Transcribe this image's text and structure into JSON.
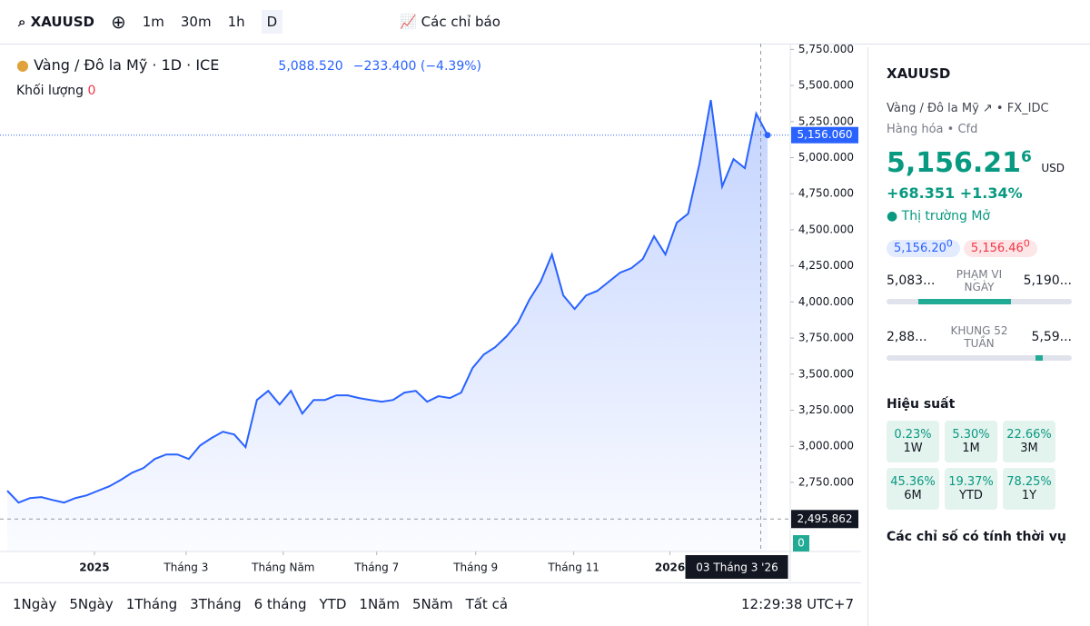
{
  "toolbar": {
    "symbol": "XAUUSD",
    "intervals": [
      "1m",
      "30m",
      "1h",
      "D"
    ],
    "indicators": "Các chỉ báo"
  },
  "legend": {
    "name": "Vàng / Đô la Mỹ · 1D · ICE",
    "price": "5,088.520",
    "change": "−233.400 (−4.39%)",
    "volume_label": "Khối lượng",
    "volume_value": "0"
  },
  "chart_data": {
    "type": "line",
    "color": "#2962ff",
    "values": [
      2692,
      2610,
      2641,
      2648,
      2628,
      2610,
      2641,
      2660,
      2692,
      2723,
      2767,
      2817,
      2849,
      2912,
      2943,
      2943,
      2912,
      3006,
      3057,
      3101,
      3082,
      2994,
      3321,
      3384,
      3290,
      3384,
      3227,
      3321,
      3321,
      3353,
      3353,
      3334,
      3321,
      3309,
      3321,
      3372,
      3384,
      3309,
      3347,
      3334,
      3372,
      3542,
      3636,
      3687,
      3762,
      3856,
      4014,
      4140,
      4329,
      4045,
      3951,
      4045,
      4077,
      4140,
      4203,
      4234,
      4297,
      4455,
      4329,
      4549,
      4612,
      4958,
      5399,
      4800,
      4990,
      4927,
      5305,
      5156
    ],
    "xlim": [
      0,
      69
    ],
    "xticks": [
      {
        "value": 7.68,
        "label": "2025"
      },
      {
        "value": 15.76,
        "label": "Tháng 3"
      },
      {
        "value": 24.32,
        "label": "Tháng Năm"
      },
      {
        "value": 32.56,
        "label": "Tháng 7"
      },
      {
        "value": 41.28,
        "label": "Tháng 9"
      },
      {
        "value": 49.92,
        "label": "Tháng 11"
      },
      {
        "value": 58.4,
        "label": "2026"
      }
    ],
    "ylim": [
      2271,
      5790
    ],
    "yticks": [
      {
        "value": 2750,
        "label": "2,750.000"
      },
      {
        "value": 3000,
        "label": "3,000.000"
      },
      {
        "value": 3250,
        "label": "3,250.000"
      },
      {
        "value": 3500,
        "label": "3,500.000"
      },
      {
        "value": 3750,
        "label": "3,750.000"
      },
      {
        "value": 4000,
        "label": "4,000.000"
      },
      {
        "value": 4250,
        "label": "4,250.000"
      },
      {
        "value": 4500,
        "label": "4,500.000"
      },
      {
        "value": 4750,
        "label": "4,750.000"
      },
      {
        "value": 5000,
        "label": "5,000.000"
      },
      {
        "value": 5250,
        "label": "5,250.000"
      },
      {
        "value": 5500,
        "label": "5,500.000"
      },
      {
        "value": 5750,
        "label": "5,750.000"
      }
    ],
    "last_price": {
      "value": 5156.06,
      "label": "5,156.060"
    },
    "crosshair": {
      "x": 66.4,
      "y": {
        "value": 2495.862,
        "label": "2,495.862"
      },
      "date": "03 Tháng 3 '26",
      "volume": "0"
    }
  },
  "range_bar": {
    "ranges": [
      "1Ngày",
      "5Ngày",
      "1Tháng",
      "3Tháng",
      "6 tháng",
      "YTD",
      "1Năm",
      "5Năm",
      "Tất cả"
    ],
    "time": "12:29:38 UTC+7"
  },
  "panel": {
    "symbol": "XAUUSD",
    "name": "Vàng / Đô la Mỹ",
    "exchange": "FX_IDC",
    "category": "Hàng hóa",
    "kind": "Cfd",
    "price": "5,156.21",
    "price_sup": "6",
    "currency": "USD",
    "change": "+68.351",
    "change_pct": "+1.34%",
    "status": "Thị trường Mở",
    "bid": "5,156.20",
    "bid_sup": "0",
    "ask": "5,156.46",
    "ask_sup": "0",
    "day_low": "5,083...",
    "day_label": "PHẠM VI NGÀY",
    "day_high": "5,190...",
    "year_low": "2,88...",
    "year_label": "KHUNG 52 TUẦN",
    "year_high": "5,59...",
    "perf_title": "Hiệu suất",
    "perf": [
      {
        "value": "0.23%",
        "period": "1W"
      },
      {
        "value": "5.30%",
        "period": "1M"
      },
      {
        "value": "22.66%",
        "period": "3M"
      },
      {
        "value": "45.36%",
        "period": "6M"
      },
      {
        "value": "19.37%",
        "period": "YTD"
      },
      {
        "value": "78.25%",
        "period": "1Y"
      }
    ],
    "seasonal": "Các chỉ số có tính thời vụ"
  }
}
